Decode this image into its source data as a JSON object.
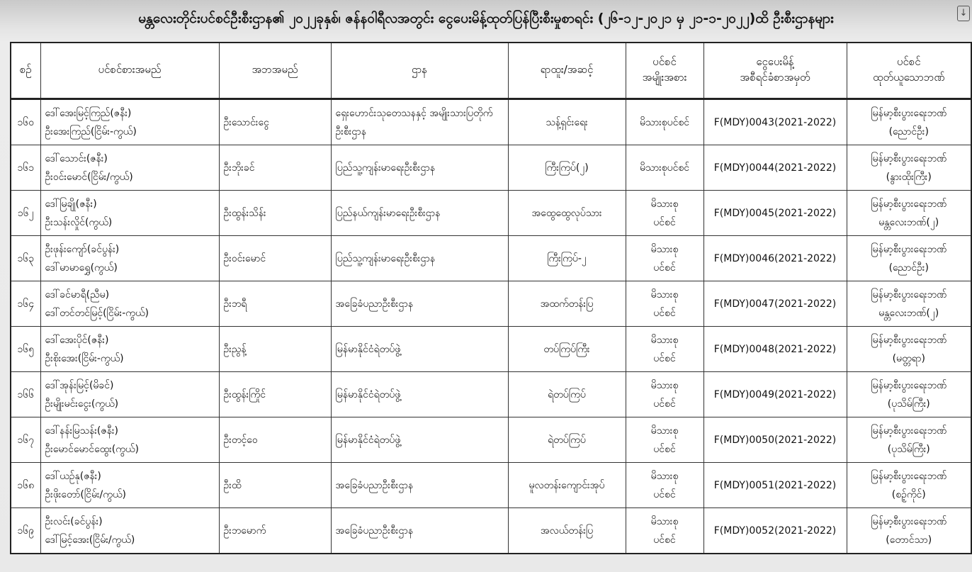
{
  "title": "မန္တလေးတိုင်းပင်စင်ဦးစီးဌာန၏ ၂၀၂၂ခုနှစ်၊ ဇန်နဝါရီလအတွင်း ငွေပေးမိန့်ထုတ်ပြန်ပြီးစီးမှုစာရင်း  (၂၆-၁၂-၂၀၂၁ မှ ၂၁-၁-၂၀၂၂)ထိ ဦးစီးဌာနများ",
  "corner_icon": "download-icon",
  "headers": {
    "serial": "စဉ်",
    "pensioner": "ပင်စင်စားအမည်",
    "father": "အဘအမည်",
    "department": "ဌာန",
    "rank": "ရာထူး/အဆင့်",
    "type_1": "ပင်စင်",
    "type_2": "အမျိုးအစား",
    "order_1": "ငွေပေးမိန့်",
    "order_2": "အစီရင်ခံစာအမှတ်",
    "bank_1": "ပင်စင်",
    "bank_2": "ထုတ်ယူသောဘဏ်"
  },
  "rows": [
    {
      "no": "၁၆၀",
      "name1": "ဒေါ်အေးမြင့်ကြည်(ဇနီး)",
      "name2": "ဦးအေးကြည်(ငြိမ်း-ကွယ်)",
      "father": "ဦးသောင်းငွေ",
      "dept": "ရှေးဟောင်းသုတေသနနှင့် အမျိုးသားပြတိုက်ဦးစီးဌာန",
      "rank": "သန့်ရှင်းရေး",
      "type": "မိသားစုပင်စင်",
      "order": "F(MDY)0043(2021-2022)",
      "bank1": "မြန်မာ့စီးပွားရေးဘဏ်",
      "bank2": "(ညောင်ဦး)"
    },
    {
      "no": "၁၆၁",
      "name1": "ဒေါ်သောင်း(ဇနီး)",
      "name2": "ဦးဝင်းမောင်(ငြိမ်း/ကွယ်)",
      "father": "ဦးဘိုးခင်",
      "dept": "ပြည်သူ့ကျန်းမာရေးဦးစီးဌာန",
      "rank": "ကြီးကြပ်(၂)",
      "type": "မိသားစုပင်စင်",
      "order": "F(MDY)0044(2021-2022)",
      "bank1": "မြန်မာ့စီးပွားရေးဘဏ်",
      "bank2": "(နွားထိုးကြီး)"
    },
    {
      "no": "၁၆၂",
      "name1": "ဒေါ်မြချို(ဇနီး)",
      "name2": "ဦးသန်းလှိုင်(ကွယ်)",
      "father": "ဦးထွန်းသိန်း",
      "dept": "ပြည်နယ်ကျန်းမာရေးဦးစီးဌာန",
      "rank": "အထွေထွေလုပ်သား",
      "type": "မိသားစု ပင်စင်",
      "order": "F(MDY)0045(2021-2022)",
      "bank1": "မြန်မာ့စီးပွားရေးဘဏ်",
      "bank2": "မန္တလေးဘဏ်(၂)"
    },
    {
      "no": "၁၆၃",
      "name1": "ဦးဖုန်းကျော်(ခင်ပွန်း)",
      "name2": "ဒေါ်မာမာရွှေ(ကွယ်)",
      "father": "ဦးဝင်းမောင်",
      "dept": "ပြည်သူ့ကျန်းမာရေးဦးစီးဌာန",
      "rank": "ကြီးကြပ်-၂",
      "type": "မိသားစု ပင်စင်",
      "order": "F(MDY)0046(2021-2022)",
      "bank1": "မြန်မာ့စီးပွားရေးဘဏ်",
      "bank2": "(ညောင်ဦး)"
    },
    {
      "no": "၁၆၄",
      "name1": "ဒေါ်ခင်မာရီ(ညီမ)",
      "name2": "ဒေါ်တင်တင်မြင့်(ငြိမ်း-ကွယ်)",
      "father": "ဦးဘရီ",
      "dept": "အခြေခံပညာဦးစီးဌာန",
      "rank": "အထက်တန်းပြ",
      "type": "မိသားစု ပင်စင်",
      "order": "F(MDY)0047(2021-2022)",
      "bank1": "မြန်မာ့စီးပွားရေးဘဏ်",
      "bank2": "မန္တလေးဘဏ်(၂)"
    },
    {
      "no": "၁၆၅",
      "name1": "ဒေါ်အေးပိုင်(ဇနီး)",
      "name2": "ဦးစိုးအေး(ငြိမ်း-ကွယ်)",
      "father": "ဦးညွန့်",
      "dept": "မြန်မာနိုင်ငံရဲတပ်ဖွဲ့",
      "rank": "တပ်ကြပ်ကြီး",
      "type": "မိသားစု ပင်စင်",
      "order": "F(MDY)0048(2021-2022)",
      "bank1": "မြန်မာ့စီးပွားရေးဘဏ်",
      "bank2": "(မတ္တရာ)"
    },
    {
      "no": "၁၆၆",
      "name1": "ဒေါ်အုန်းမြင့်(မိခင်)",
      "name2": "ဦးမျိုးမင်းငွေး(ကွယ်)",
      "father": "ဦးထွန်းကြိုင်",
      "dept": "မြန်မာနိုင်ငံရဲတပ်ဖွဲ့",
      "rank": "ရဲတပ်ကြပ်",
      "type": "မိသားစု ပင်စင်",
      "order": "F(MDY)0049(2021-2022)",
      "bank1": "မြန်မာ့စီးပွားရေးဘဏ်",
      "bank2": "(ပုသိမ်ကြီး)"
    },
    {
      "no": "၁၆၇",
      "name1": "ဒေါ်နန်းမြသန်း(ဇနီး)",
      "name2": "ဦးမောင်မောင်ထွေး(ကွယ်)",
      "father": "ဦးတင့်ဝေ",
      "dept": "မြန်မာနိုင်ငံရဲတပ်ဖွဲ့",
      "rank": "ရဲတပ်ကြပ်",
      "type": "မိသားစု ပင်စင်",
      "order": "F(MDY)0050(2021-2022)",
      "bank1": "မြန်မာ့စီးပွားရေးဘဏ်",
      "bank2": "(ပုသိမ်ကြီး)"
    },
    {
      "no": "၁၆၈",
      "name1": "ဒေါ်ယဉ်နု(ဇနီး)",
      "name2": "ဦးဖိုးတော်(ငြိမ်း/ကွယ်)",
      "father": "ဦးထိ",
      "dept": "အခြေခံပညာဦးစီးဌာန",
      "rank": "မူလတန်းကျောင်းအုပ်",
      "type": "မိသားစု ပင်စင်",
      "order": "F(MDY)0051(2021-2022)",
      "bank1": "မြန်မာ့စီးပွားရေးဘဏ်",
      "bank2": "(စဉ့်ကိုင်)"
    },
    {
      "no": "၁၆၉",
      "name1": "ဦးလင်း(ခင်ပွန်း)",
      "name2": "ဒေါ်မြင့်အေး(ငြိမ်း/ကွယ်)",
      "father": "ဦးဘမောက်",
      "dept": "အခြေခံပညာဦးစီးဌာန",
      "rank": "အလယ်တန်းပြ",
      "type": "မိသားစု ပင်စင်",
      "order": "F(MDY)0052(2021-2022)",
      "bank1": "မြန်မာ့စီးပွားရေးဘဏ်",
      "bank2": "(တောင်သာ)"
    }
  ]
}
